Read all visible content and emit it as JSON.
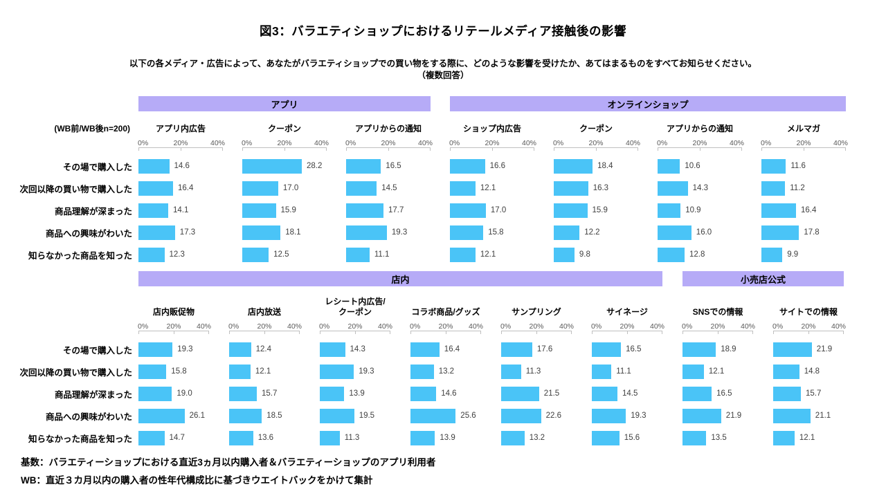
{
  "page": {
    "title": "図3：バラエティショップにおけるリテールメディア接触後の影響",
    "subtitle": "以下の各メディア・広告によって、あなたがバラエティショップでの買い物をする際に、どのような影響を受けたか、あてはまるものをすべてお知らせください。",
    "subtitle2": "（複数回答）",
    "sample_note": "(WB前/WB後n=200)",
    "footer1": "基数：バラエティーショップにおける直近3ヵ月以内購入者＆バラエティーショップのアプリ利用者",
    "footer2": "WB：直近３カ月以内の購入者の性年代構成比に基づきウエイトバックをかけて集計"
  },
  "colors": {
    "bar": "#4ac4f7",
    "band": "#b6abf7",
    "axis": "#bfbfbf",
    "axis_text": "#595959",
    "value_text": "#404040"
  },
  "chart_data": {
    "type": "bar",
    "orientation": "horizontal",
    "value_unit": "%",
    "xlim": [
      0,
      40
    ],
    "ticks": [
      "0%",
      "20%",
      "40%"
    ],
    "grid": false,
    "legend": "none",
    "categories": [
      "その場で購入した",
      "次回以降の買い物で購入した",
      "商品理解が深まった",
      "商品への興味がわいた",
      "知らなかった商品を知った"
    ],
    "sections": [
      {
        "groups": [
          {
            "label": "アプリ",
            "series": [
              {
                "name": "アプリ内広告",
                "values": [
                  14.6,
                  16.4,
                  14.1,
                  17.3,
                  12.3
                ]
              },
              {
                "name": "クーポン",
                "values": [
                  28.2,
                  17.0,
                  15.9,
                  18.1,
                  12.5
                ]
              },
              {
                "name": "アプリからの通知",
                "values": [
                  16.5,
                  14.5,
                  17.7,
                  19.3,
                  11.1
                ]
              }
            ]
          },
          {
            "label": "オンラインショップ",
            "series": [
              {
                "name": "ショップ内広告",
                "values": [
                  16.6,
                  12.1,
                  17.0,
                  15.8,
                  12.1
                ]
              },
              {
                "name": "クーポン",
                "values": [
                  18.4,
                  16.3,
                  15.9,
                  12.2,
                  9.8
                ]
              },
              {
                "name": "アプリからの通知",
                "values": [
                  10.6,
                  14.3,
                  10.9,
                  16.0,
                  12.8
                ]
              },
              {
                "name": "メルマガ",
                "values": [
                  11.6,
                  11.2,
                  16.4,
                  17.8,
                  9.9
                ]
              }
            ]
          }
        ]
      },
      {
        "groups": [
          {
            "label": "店内",
            "series": [
              {
                "name": "店内販促物",
                "values": [
                  19.3,
                  15.8,
                  19.0,
                  26.1,
                  14.7
                ]
              },
              {
                "name": "店内放送",
                "values": [
                  12.4,
                  12.1,
                  15.7,
                  18.5,
                  13.6
                ]
              },
              {
                "name": "レシート内広告/\nクーポン",
                "values": [
                  14.3,
                  19.3,
                  13.9,
                  19.5,
                  11.3
                ]
              },
              {
                "name": "コラボ商品/グッズ",
                "values": [
                  16.4,
                  13.2,
                  14.6,
                  25.6,
                  13.9
                ]
              },
              {
                "name": "サンプリング",
                "values": [
                  17.6,
                  11.3,
                  21.5,
                  22.6,
                  13.2
                ]
              },
              {
                "name": "サイネージ",
                "values": [
                  16.5,
                  11.1,
                  14.5,
                  19.3,
                  15.6
                ]
              }
            ]
          },
          {
            "label": "小売店公式",
            "series": [
              {
                "name": "SNSでの情報",
                "values": [
                  18.9,
                  12.1,
                  16.5,
                  21.9,
                  13.5
                ]
              },
              {
                "name": "サイトでの情報",
                "values": [
                  21.9,
                  14.8,
                  15.7,
                  21.1,
                  12.1
                ]
              }
            ]
          }
        ]
      }
    ]
  }
}
